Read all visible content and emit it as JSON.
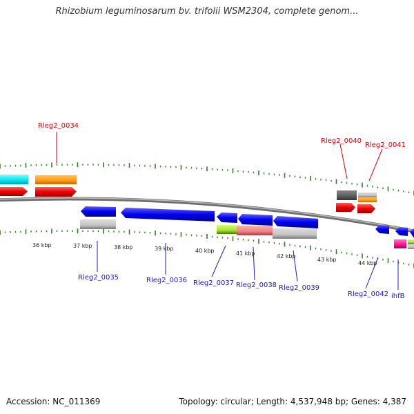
{
  "title": "Rhizobium leguminosarum bv. trifolii WSM2304, complete genom...",
  "footer": {
    "accession": "Accession: NC_011369",
    "summary": "Topology: circular; Length: 4,537,948 bp; Genes: 4,387"
  },
  "colors": {
    "label_forward": "#cc0000",
    "label_reverse": "#1a1ab3",
    "tick": "#2e7d1e",
    "backbone": "#888888"
  },
  "kbp_ticks": [
    "36 kbp",
    "37 kbp",
    "38 kbp",
    "39 kbp",
    "40 kbp",
    "41 kbp",
    "42 kbp",
    "43 kbp",
    "44 kbp"
  ],
  "gene_labels": {
    "top": [
      "Rleg2_0034",
      "Rleg2_0040",
      "Rleg2_0041"
    ],
    "bottom": [
      "Rleg2_0035",
      "Rleg2_0036",
      "Rleg2_0037",
      "Rleg2_0038",
      "Rleg2_0039",
      "Rleg2_0042",
      "ihfB"
    ]
  }
}
